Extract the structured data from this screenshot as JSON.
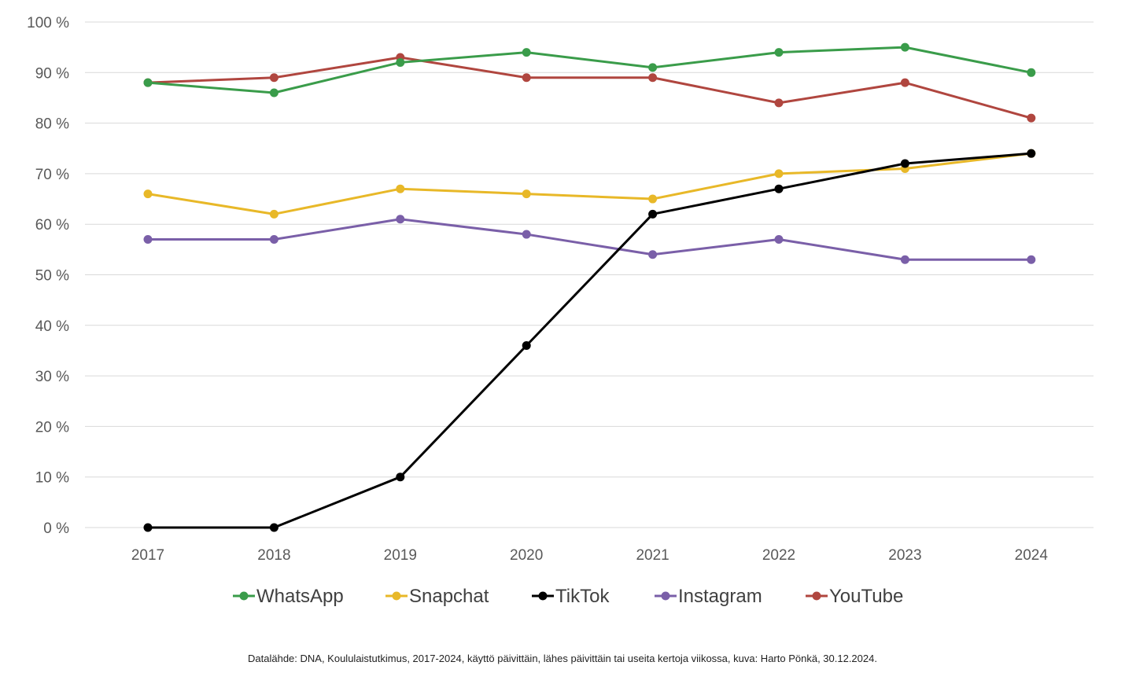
{
  "chart_data": {
    "type": "line",
    "categories": [
      "2017",
      "2018",
      "2019",
      "2020",
      "2021",
      "2022",
      "2023",
      "2024"
    ],
    "ylim": [
      0,
      100
    ],
    "ytick_values": [
      0,
      10,
      20,
      30,
      40,
      50,
      60,
      70,
      80,
      90,
      100
    ],
    "ytick_labels": [
      "0 %",
      "10 %",
      "20 %",
      "30 %",
      "40 %",
      "50 %",
      "60 %",
      "70 %",
      "80 %",
      "90 %",
      "100 %"
    ],
    "grid": true,
    "legend_position": "bottom",
    "series": [
      {
        "name": "WhatsApp",
        "color": "#3a9c4a",
        "values": [
          88,
          86,
          92,
          94,
          91,
          94,
          95,
          90
        ]
      },
      {
        "name": "Snapchat",
        "color": "#e8b828",
        "values": [
          66,
          62,
          67,
          66,
          65,
          70,
          71,
          74
        ]
      },
      {
        "name": "TikTok",
        "color": "#000000",
        "values": [
          0,
          0,
          10,
          36,
          62,
          67,
          72,
          74
        ]
      },
      {
        "name": "Instagram",
        "color": "#7a5fa8",
        "values": [
          57,
          57,
          61,
          58,
          54,
          57,
          53,
          53
        ]
      },
      {
        "name": "YouTube",
        "color": "#b0463f",
        "values": [
          88,
          89,
          93,
          89,
          89,
          84,
          88,
          81
        ]
      }
    ],
    "draw_order": [
      4,
      0,
      3,
      1,
      2
    ],
    "source": "Datalähde: DNA, Koululaistutkimus, 2017-2024, käyttö päivittäin, lähes päivittäin tai useita kertoja viikossa, kuva: Harto Pönkä, 30.12.2024."
  }
}
